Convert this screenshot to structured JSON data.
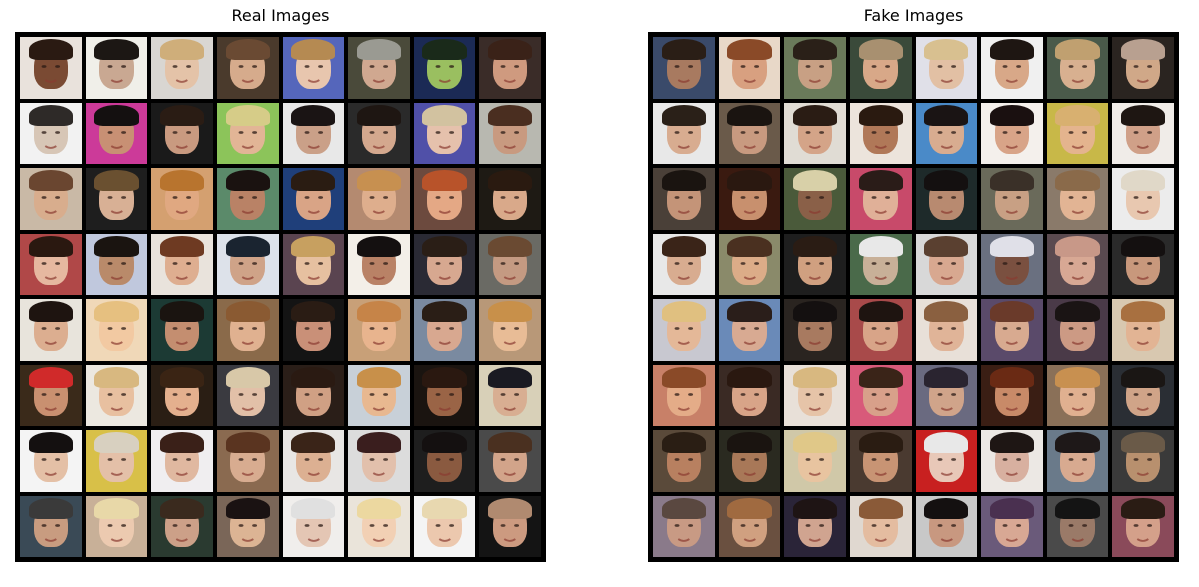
{
  "panels": [
    {
      "title": "Real Images",
      "tiles": [
        {
          "bg": "#e9e2dc",
          "skin": "#7a4a33",
          "hair": "#2a1a12"
        },
        {
          "bg": "#f0efe9",
          "skin": "#c9a892",
          "hair": "#1c1714"
        },
        {
          "bg": "#d9d6d2",
          "skin": "#e4c3a8",
          "hair": "#cfae7a"
        },
        {
          "bg": "#4a3a2c",
          "skin": "#d6ab8c",
          "hair": "#6a4a33"
        },
        {
          "bg": "#5566bb",
          "skin": "#e8c6ae",
          "hair": "#b58a52"
        },
        {
          "bg": "#4a4a3a",
          "skin": "#d0a890",
          "hair": "#9a9a92"
        },
        {
          "bg": "#1b2a55",
          "skin": "#9abf60",
          "hair": "#1a2a1a"
        },
        {
          "bg": "#3a2c28",
          "skin": "#cf9a7f",
          "hair": "#3a2218"
        },
        {
          "bg": "#f2f2f2",
          "skin": "#d7c6b6",
          "hair": "#2e2a28"
        },
        {
          "bg": "#cc3a99",
          "skin": "#c89074",
          "hair": "#141010"
        },
        {
          "bg": "#1a1a1a",
          "skin": "#c99a80",
          "hair": "#2a1c14"
        },
        {
          "bg": "#8cc45a",
          "skin": "#e2b596",
          "hair": "#d6cc88"
        },
        {
          "bg": "#e8e8e8",
          "skin": "#caa088",
          "hair": "#1a1414"
        },
        {
          "bg": "#2a2a2a",
          "skin": "#d4a88e",
          "hair": "#1e1612"
        },
        {
          "bg": "#5050a8",
          "skin": "#e5c1ac",
          "hair": "#d2c2a0"
        },
        {
          "bg": "#b8b8b0",
          "skin": "#c89a80",
          "hair": "#4a2e20"
        },
        {
          "bg": "#c9b9a6",
          "skin": "#d8ad8d",
          "hair": "#6a4630"
        },
        {
          "bg": "#1e1e1e",
          "skin": "#d8b095",
          "hair": "#6a5030"
        },
        {
          "bg": "#d4a070",
          "skin": "#e0a881",
          "hair": "#b8742e"
        },
        {
          "bg": "#5b8a6a",
          "skin": "#b98266",
          "hair": "#1a1210"
        },
        {
          "bg": "#1f3f7a",
          "skin": "#d9a486",
          "hair": "#2a1c12"
        },
        {
          "bg": "#b48a70",
          "skin": "#deae8d",
          "hair": "#c79050"
        },
        {
          "bg": "#6c4a3e",
          "skin": "#e4a885",
          "hair": "#b8532a"
        },
        {
          "bg": "#1e1a14",
          "skin": "#d9a98a",
          "hair": "#2a1a10"
        },
        {
          "bg": "#b04848",
          "skin": "#e6b8a0",
          "hair": "#2a1810"
        },
        {
          "bg": "#c0c8dd",
          "skin": "#b98a6a",
          "hair": "#1a1410"
        },
        {
          "bg": "#e9e3dc",
          "skin": "#deae90",
          "hair": "#6e3a22"
        },
        {
          "bg": "#dde2ea",
          "skin": "#cfa388",
          "hair": "#1a2430"
        },
        {
          "bg": "#5a4450",
          "skin": "#e6c0a0",
          "hair": "#c7a060"
        },
        {
          "bg": "#f3efe8",
          "skin": "#b98266",
          "hair": "#141010"
        },
        {
          "bg": "#2a2a34",
          "skin": "#d7a890",
          "hair": "#2a1e16"
        },
        {
          "bg": "#6a6a64",
          "skin": "#c49a82",
          "hair": "#6a4a32"
        },
        {
          "bg": "#e8e4dc",
          "skin": "#dcae90",
          "hair": "#1e1410"
        },
        {
          "bg": "#f0d8b8",
          "skin": "#f2c9a2",
          "hair": "#e6c080"
        },
        {
          "bg": "#1c3a34",
          "skin": "#c48e70",
          "hair": "#1a1410"
        },
        {
          "bg": "#8a6a4a",
          "skin": "#e0b190",
          "hair": "#8a5a32"
        },
        {
          "bg": "#141414",
          "skin": "#c99078",
          "hair": "#2a1c14"
        },
        {
          "bg": "#c8a078",
          "skin": "#e8b48e",
          "hair": "#c68448"
        },
        {
          "bg": "#7a8aa0",
          "skin": "#d8a890",
          "hair": "#2a1e16"
        },
        {
          "bg": "#b89878",
          "skin": "#e8bc96",
          "hair": "#c8904a"
        },
        {
          "bg": "#3a2a1a",
          "skin": "#c99070",
          "hair": "#d02a2a"
        },
        {
          "bg": "#ece8e0",
          "skin": "#e8c0a0",
          "hair": "#d8b880"
        },
        {
          "bg": "#2a1e14",
          "skin": "#e4b08e",
          "hair": "#3a2414"
        },
        {
          "bg": "#3a3a40",
          "skin": "#e2c0a8",
          "hair": "#d8c8a8"
        },
        {
          "bg": "#2a1e18",
          "skin": "#d0a084",
          "hair": "#2a1a12"
        },
        {
          "bg": "#c8d0d8",
          "skin": "#e8b890",
          "hair": "#c8904a"
        },
        {
          "bg": "#1a1410",
          "skin": "#9a6446",
          "hair": "#2a1810"
        },
        {
          "bg": "#d8d0b8",
          "skin": "#d8ae92",
          "hair": "#1a1a22"
        },
        {
          "bg": "#f4f4f4",
          "skin": "#e4c0a6",
          "hair": "#141010"
        },
        {
          "bg": "#d8c048",
          "skin": "#e4c0a8",
          "hair": "#d8d0c0"
        },
        {
          "bg": "#f0eef0",
          "skin": "#e0b8a0",
          "hair": "#3a2018"
        },
        {
          "bg": "#8a6a50",
          "skin": "#d8ac90",
          "hair": "#5a3420"
        },
        {
          "bg": "#e8e6e4",
          "skin": "#dcb092",
          "hair": "#3a2418"
        },
        {
          "bg": "#dcdcdc",
          "skin": "#e2c0ac",
          "hair": "#3a1e1e"
        },
        {
          "bg": "#1e1e1e",
          "skin": "#8a5a40",
          "hair": "#141010"
        },
        {
          "bg": "#4a4a4a",
          "skin": "#d2a48a",
          "hair": "#4a3020"
        },
        {
          "bg": "#3a4a56",
          "skin": "#c89c80",
          "hair": "#3a3a3a"
        },
        {
          "bg": "#c8b098",
          "skin": "#eccab0",
          "hair": "#e8d8a8"
        },
        {
          "bg": "#2a3a30",
          "skin": "#cca088",
          "hair": "#3a2a1e"
        },
        {
          "bg": "#7a6658",
          "skin": "#dcb494",
          "hair": "#1a1212"
        },
        {
          "bg": "#f0eeec",
          "skin": "#e4c6b4",
          "hair": "#e0e0e0"
        },
        {
          "bg": "#eae4da",
          "skin": "#f2d0b4",
          "hair": "#ecd8a0"
        },
        {
          "bg": "#f4f4f4",
          "skin": "#ecc8ae",
          "hair": "#e8d8b0"
        },
        {
          "bg": "#141414",
          "skin": "#cc9a80",
          "hair": "#b08a70"
        }
      ]
    },
    {
      "title": "Fake Images",
      "tiles": [
        {
          "bg": "#3a4a6a",
          "skin": "#a87a60",
          "hair": "#2a1e16"
        },
        {
          "bg": "#e8d8c8",
          "skin": "#d8a080",
          "hair": "#8a4a28"
        },
        {
          "bg": "#6a7a5a",
          "skin": "#c8a084",
          "hair": "#2a2018"
        },
        {
          "bg": "#3a4a3a",
          "skin": "#d8a888",
          "hair": "#a89070"
        },
        {
          "bg": "#e0e0e8",
          "skin": "#e2c0a4",
          "hair": "#d8c090"
        },
        {
          "bg": "#f0f0f0",
          "skin": "#d8a888",
          "hair": "#1e1612"
        },
        {
          "bg": "#4a5a4a",
          "skin": "#d8b090",
          "hair": "#c0a070"
        },
        {
          "bg": "#2a2420",
          "skin": "#d0a888",
          "hair": "#b8a090"
        },
        {
          "bg": "#e8e8e8",
          "skin": "#d8ac90",
          "hair": "#2a2018"
        },
        {
          "bg": "#6a5a4a",
          "skin": "#c89a80",
          "hair": "#1a1410"
        },
        {
          "bg": "#e0dcd4",
          "skin": "#d4a488",
          "hair": "#2a1c14"
        },
        {
          "bg": "#ece4dc",
          "skin": "#b07858",
          "hair": "#2a1a10"
        },
        {
          "bg": "#4a8ac8",
          "skin": "#d8ac90",
          "hair": "#1a1414"
        },
        {
          "bg": "#f4f0ec",
          "skin": "#d8a488",
          "hair": "#1a1010"
        },
        {
          "bg": "#c8b848",
          "skin": "#e4b48e",
          "hair": "#d8b070"
        },
        {
          "bg": "#f0ece8",
          "skin": "#d0a088",
          "hair": "#1e1612"
        },
        {
          "bg": "#4a4038",
          "skin": "#c49478",
          "hair": "#1a1410"
        },
        {
          "bg": "#3a1a10",
          "skin": "#c8906e",
          "hair": "#2a1810"
        },
        {
          "bg": "#4a5a3a",
          "skin": "#8a6048",
          "hair": "#d8d0a8"
        },
        {
          "bg": "#c84a6a",
          "skin": "#e0b098",
          "hair": "#2a1c18"
        },
        {
          "bg": "#1e2a2a",
          "skin": "#b88a70",
          "hair": "#141010"
        },
        {
          "bg": "#6a6a5a",
          "skin": "#c8a084",
          "hair": "#3a3028"
        },
        {
          "bg": "#8a7a6a",
          "skin": "#e2b494",
          "hair": "#8a6a4a"
        },
        {
          "bg": "#ececec",
          "skin": "#e8c8b0",
          "hair": "#e0d8c8"
        },
        {
          "bg": "#e8e8e8",
          "skin": "#d8ac90",
          "hair": "#3a2418"
        },
        {
          "bg": "#8a8a6a",
          "skin": "#dcac88",
          "hair": "#4a3020"
        },
        {
          "bg": "#1e1e1e",
          "skin": "#d0a080",
          "hair": "#2a1c14"
        },
        {
          "bg": "#4a6a4a",
          "skin": "#c8b098",
          "hair": "#e8e8e8"
        },
        {
          "bg": "#d8d8d8",
          "skin": "#d8a890",
          "hair": "#5a4030"
        },
        {
          "bg": "#6a7080",
          "skin": "#7a5040",
          "hair": "#e0e0e8"
        },
        {
          "bg": "#5a4a50",
          "skin": "#d8a894",
          "hair": "#c89888"
        },
        {
          "bg": "#2a2a2a",
          "skin": "#c8987c",
          "hair": "#141010"
        },
        {
          "bg": "#c8c8d0",
          "skin": "#e4b898",
          "hair": "#e0c080"
        },
        {
          "bg": "#6a8ab8",
          "skin": "#d8aa92",
          "hair": "#2a1e1a"
        },
        {
          "bg": "#2a2420",
          "skin": "#a87a60",
          "hair": "#141010"
        },
        {
          "bg": "#a84a4a",
          "skin": "#d8a488",
          "hair": "#1e1410"
        },
        {
          "bg": "#e8e0d8",
          "skin": "#e0b498",
          "hair": "#8a6040"
        },
        {
          "bg": "#5a4a6a",
          "skin": "#d8aa90",
          "hair": "#6a3a2a"
        },
        {
          "bg": "#4a3a48",
          "skin": "#cc9a84",
          "hair": "#1a1414"
        },
        {
          "bg": "#d8c8b0",
          "skin": "#e2b494",
          "hair": "#a87040"
        },
        {
          "bg": "#c88068",
          "skin": "#e4ac88",
          "hair": "#8a4a28"
        },
        {
          "bg": "#3a2a24",
          "skin": "#d8a488",
          "hair": "#2a1810"
        },
        {
          "bg": "#e8e0d8",
          "skin": "#e6c4a8",
          "hair": "#d8b880"
        },
        {
          "bg": "#d85a7a",
          "skin": "#d8a08a",
          "hair": "#3a2418"
        },
        {
          "bg": "#6a6a80",
          "skin": "#d0a48a",
          "hair": "#2a2430"
        },
        {
          "bg": "#3a1e14",
          "skin": "#c88a68",
          "hair": "#6a2a14"
        },
        {
          "bg": "#8a7058",
          "skin": "#e0b090",
          "hair": "#c89050"
        },
        {
          "bg": "#2a2e34",
          "skin": "#d0a488",
          "hair": "#1a1614"
        },
        {
          "bg": "#5a4a3a",
          "skin": "#b88060",
          "hair": "#2a1e14"
        },
        {
          "bg": "#2a2a20",
          "skin": "#a87858",
          "hair": "#1a1410"
        },
        {
          "bg": "#d0c8a8",
          "skin": "#e8c4a0",
          "hair": "#e0c888"
        },
        {
          "bg": "#4a3a30",
          "skin": "#c89474",
          "hair": "#2a1c12"
        },
        {
          "bg": "#c82020",
          "skin": "#e8c8b8",
          "hair": "#e8e8e8"
        },
        {
          "bg": "#ece8e4",
          "skin": "#d8b0a0",
          "hair": "#1e1614"
        },
        {
          "bg": "#6a7a8a",
          "skin": "#d8aa90",
          "hair": "#1e1818"
        },
        {
          "bg": "#3a3a3a",
          "skin": "#b8906e",
          "hair": "#6a5a48"
        },
        {
          "bg": "#8a7a8a",
          "skin": "#c89a84",
          "hair": "#5a4840"
        },
        {
          "bg": "#6a5040",
          "skin": "#d0a080",
          "hair": "#a06a40"
        },
        {
          "bg": "#2a2438",
          "skin": "#d0a490",
          "hair": "#1e1414"
        },
        {
          "bg": "#e0d8d0",
          "skin": "#e4bca0",
          "hair": "#8a5a38"
        },
        {
          "bg": "#c8c8c8",
          "skin": "#c89880",
          "hair": "#141010"
        },
        {
          "bg": "#6a5a7a",
          "skin": "#d8a894",
          "hair": "#4a3050"
        },
        {
          "bg": "#4a4a4a",
          "skin": "#9a7a68",
          "hair": "#141414"
        },
        {
          "bg": "#8a4a5a",
          "skin": "#d4a08a",
          "hair": "#2a1c14"
        }
      ]
    }
  ]
}
